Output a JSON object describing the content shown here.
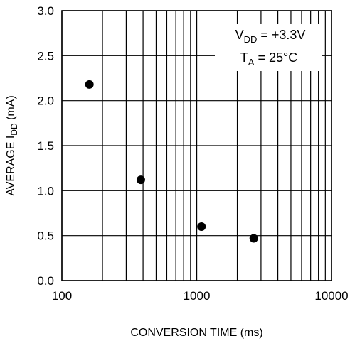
{
  "chart_data": {
    "type": "scatter",
    "xlabel": "CONVERSION TIME (ms)",
    "ylabel_main": "AVERAGE I",
    "ylabel_sub": "DD",
    "ylabel_unit": " (mA)",
    "x_scale": "log",
    "xlim": [
      100,
      10000
    ],
    "ylim": [
      0,
      3.0
    ],
    "grid": true,
    "x_ticks": [
      100,
      1000,
      10000
    ],
    "x_tick_labels": [
      "100",
      "1000",
      "10000"
    ],
    "y_ticks": [
      0,
      0.5,
      1.0,
      1.5,
      2.0,
      2.5,
      3.0
    ],
    "y_tick_labels": [
      "0.0",
      "0.5",
      "1.0",
      "1.5",
      "2.0",
      "2.5",
      "3.0"
    ],
    "annotations": [
      {
        "main": "V",
        "sub": "DD",
        "rest": " = +3.3V"
      },
      {
        "main": "T",
        "sub": "A",
        "rest": " = 25°C"
      }
    ],
    "points": [
      {
        "x": 160,
        "y": 2.18
      },
      {
        "x": 385,
        "y": 1.12
      },
      {
        "x": 1085,
        "y": 0.6
      },
      {
        "x": 2650,
        "y": 0.47
      }
    ]
  }
}
